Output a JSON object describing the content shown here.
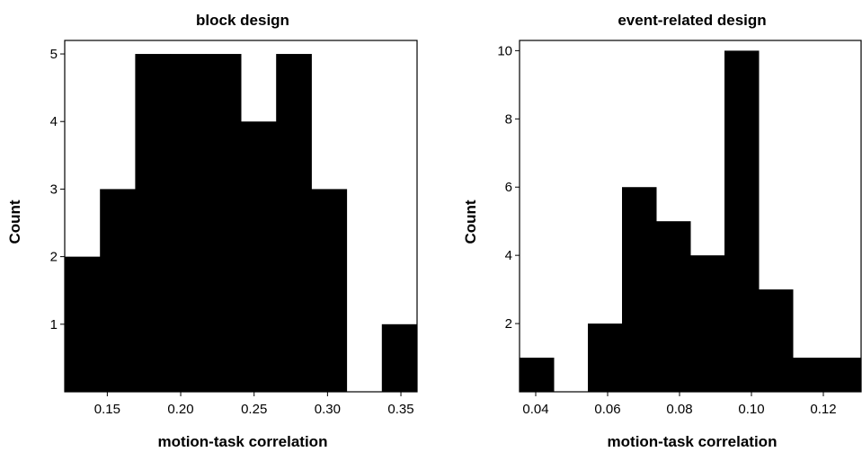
{
  "chart_data": [
    {
      "type": "bar",
      "title": "block design",
      "xlabel": "motion-task correlation",
      "ylabel": "Count",
      "bin_width": 0.024,
      "bin_starts": [
        0.121,
        0.145,
        0.169,
        0.193,
        0.217,
        0.241,
        0.265,
        0.289,
        0.313,
        0.337
      ],
      "values": [
        2,
        3,
        5,
        5,
        5,
        4,
        5,
        3,
        0,
        1
      ],
      "xlim": [
        0.121,
        0.361
      ],
      "ylim": [
        0,
        5.2
      ],
      "xticks": [
        0.15,
        0.2,
        0.25,
        0.3,
        0.35
      ],
      "xtick_labels": [
        "0.15",
        "0.20",
        "0.25",
        "0.30",
        "0.35"
      ],
      "yticks": [
        1,
        2,
        3,
        4,
        5
      ],
      "ytick_labels": [
        "1",
        "2",
        "3",
        "4",
        "5"
      ],
      "grid": false,
      "bar_color": "#000000"
    },
    {
      "type": "bar",
      "title": "event-related design",
      "xlabel": "motion-task correlation",
      "ylabel": "Count",
      "bin_width": 0.0095,
      "bin_starts": [
        0.0355,
        0.045,
        0.0545,
        0.064,
        0.0735,
        0.083,
        0.0925,
        0.102,
        0.1115,
        0.121
      ],
      "values": [
        1,
        0,
        2,
        6,
        5,
        4,
        10,
        3,
        1,
        1
      ],
      "xlim": [
        0.0355,
        0.1305
      ],
      "ylim": [
        0,
        10.3
      ],
      "xticks": [
        0.04,
        0.06,
        0.08,
        0.1,
        0.12
      ],
      "xtick_labels": [
        "0.04",
        "0.06",
        "0.08",
        "0.10",
        "0.12"
      ],
      "yticks": [
        2,
        4,
        6,
        8,
        10
      ],
      "ytick_labels": [
        "2",
        "4",
        "6",
        "8",
        "10"
      ],
      "grid": false,
      "bar_color": "#000000"
    }
  ]
}
